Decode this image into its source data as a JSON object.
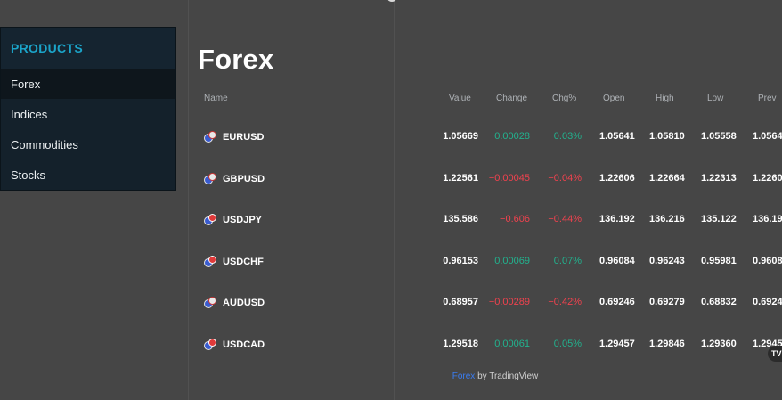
{
  "sidebar": {
    "heading": "PRODUCTS",
    "items": [
      {
        "label": "Forex",
        "active": true
      },
      {
        "label": "Indices",
        "active": false
      },
      {
        "label": "Commodities",
        "active": false
      },
      {
        "label": "Stocks",
        "active": false
      }
    ]
  },
  "page": {
    "title": "Forex"
  },
  "table": {
    "columns": [
      "Name",
      "Value",
      "Change",
      "Chg%",
      "Open",
      "High",
      "Low",
      "Prev"
    ],
    "rows": [
      {
        "name": "EURUSD",
        "value": "1.05669",
        "change": "0.00028",
        "chg_pct": "0.03%",
        "open": "1.05641",
        "high": "1.05810",
        "low": "1.05558",
        "prev": "1.0564",
        "dir": "up"
      },
      {
        "name": "GBPUSD",
        "value": "1.22561",
        "change": "−0.00045",
        "chg_pct": "−0.04%",
        "open": "1.22606",
        "high": "1.22664",
        "low": "1.22313",
        "prev": "1.2260",
        "dir": "down"
      },
      {
        "name": "USDJPY",
        "value": "135.586",
        "change": "−0.606",
        "chg_pct": "−0.44%",
        "open": "136.192",
        "high": "136.216",
        "low": "135.122",
        "prev": "136.19",
        "dir": "down"
      },
      {
        "name": "USDCHF",
        "value": "0.96153",
        "change": "0.00069",
        "chg_pct": "0.07%",
        "open": "0.96084",
        "high": "0.96243",
        "low": "0.95981",
        "prev": "0.9608",
        "dir": "up"
      },
      {
        "name": "AUDUSD",
        "value": "0.68957",
        "change": "−0.00289",
        "chg_pct": "−0.42%",
        "open": "0.69246",
        "high": "0.69279",
        "low": "0.68832",
        "prev": "0.6924",
        "dir": "down"
      },
      {
        "name": "USDCAD",
        "value": "1.29518",
        "change": "0.00061",
        "chg_pct": "0.05%",
        "open": "1.29457",
        "high": "1.29846",
        "low": "1.29360",
        "prev": "1.2945",
        "dir": "up"
      }
    ]
  },
  "credit": {
    "link": "Forex",
    "rest": " by TradingView"
  },
  "badge": {
    "label": "TV"
  },
  "colors": {
    "up": "#22b28e",
    "down": "#f0424e",
    "accent": "#1ba4c9",
    "link": "#3a7cf0"
  },
  "icons": [
    "currency-pair-flag-icon"
  ]
}
